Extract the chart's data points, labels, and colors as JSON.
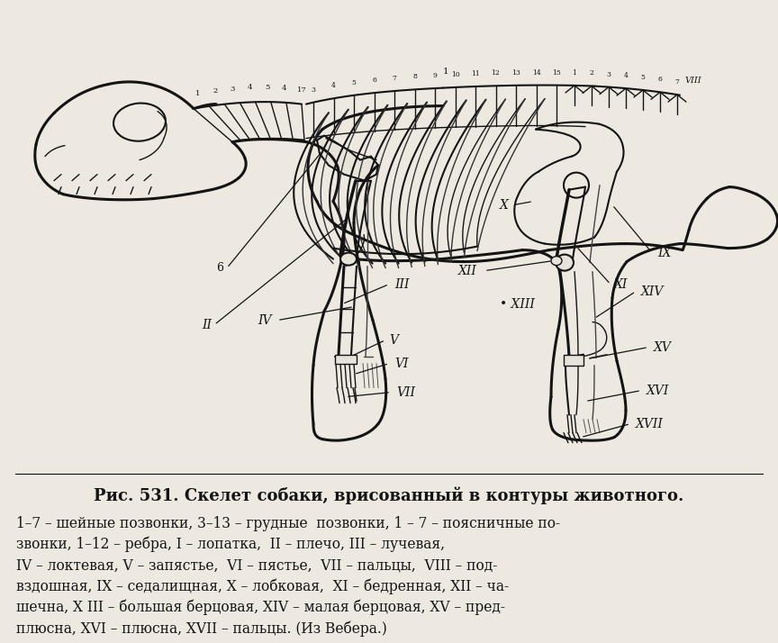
{
  "bg_color": "#ede8e0",
  "line_color": "#141414",
  "text_color": "#141414",
  "caption": "Рис. 531. Скелет собаки, врисованный в контуры животного.",
  "legend_line1": "1–7 – шейные позвонки, 3–13 – грудные  позвонки, 1 – 7 – поясничные позвонки, 1–12 – ребра, I – лопатка,  II – плечо, III – лучевая,",
  "legend_line2": "IV – локтевая, V – запястье, VI – пястье, VII – пальцы, VIII – под-",
  "legend_line3": "вздошная, IX – седалищная, X – лобковая,  XI – бедренная, XII – ча-",
  "legend_line4": "шечна, X III – большая берцовая, XIV – малая берцовая, XV – пред-",
  "legend_line5": "плюсна, XVI – плюсна, XVII – пальцы. (Из Вебера.)",
  "fig_w": 8.64,
  "fig_h": 7.14,
  "dpi": 100
}
